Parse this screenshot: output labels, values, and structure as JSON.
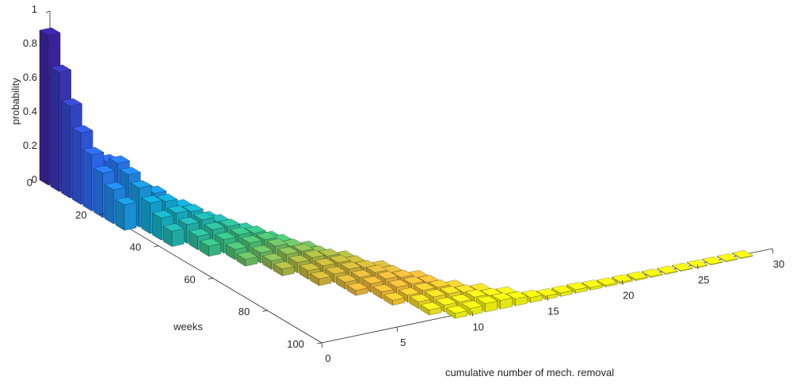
{
  "chart_data": {
    "type": "bar3d",
    "xlabel": "cumulative number of mech. removal",
    "ylabel": "weeks",
    "zlabel": "probability",
    "x_ticks": [
      0,
      5,
      10,
      15,
      20,
      25,
      30
    ],
    "y_ticks": [
      0,
      20,
      40,
      60,
      80,
      100
    ],
    "z_ticks": [
      0,
      0.2,
      0.4,
      0.6,
      0.8,
      1
    ],
    "xlim": [
      0,
      30
    ],
    "ylim": [
      0,
      100
    ],
    "zlim": [
      0,
      1
    ],
    "grid": false,
    "colormap": "parula",
    "colormap_stops": [
      "#3e26a8",
      "#2e6efb",
      "#12b0d6",
      "#3fc57e",
      "#c3b93c",
      "#f7ba3c",
      "#f9fb15"
    ],
    "series": [
      {
        "x": 0,
        "weeks": [
          0,
          4,
          8,
          12,
          16,
          20,
          24,
          28
        ],
        "values": [
          0.88,
          0.7,
          0.54,
          0.42,
          0.33,
          0.26,
          0.2,
          0.15
        ]
      },
      {
        "x": 1,
        "weeks": [
          8,
          12,
          16,
          20,
          24,
          28,
          32,
          36,
          40
        ],
        "values": [
          0.05,
          0.2,
          0.27,
          0.3,
          0.27,
          0.23,
          0.18,
          0.13,
          0.09
        ]
      },
      {
        "x": 2,
        "weeks": [
          16,
          20,
          24,
          28,
          32,
          36,
          40,
          44,
          48
        ],
        "values": [
          0.04,
          0.1,
          0.16,
          0.18,
          0.17,
          0.14,
          0.11,
          0.08,
          0.06
        ]
      },
      {
        "x": 3,
        "weeks": [
          24,
          28,
          32,
          36,
          40,
          44,
          48,
          52,
          56
        ],
        "values": [
          0.04,
          0.08,
          0.12,
          0.13,
          0.12,
          0.1,
          0.08,
          0.06,
          0.04
        ]
      },
      {
        "x": 4,
        "weeks": [
          32,
          36,
          40,
          44,
          48,
          52,
          56,
          60,
          64
        ],
        "values": [
          0.04,
          0.07,
          0.09,
          0.1,
          0.09,
          0.08,
          0.06,
          0.05,
          0.04
        ]
      },
      {
        "x": 5,
        "weeks": [
          40,
          44,
          48,
          52,
          56,
          60,
          64,
          68,
          72
        ],
        "values": [
          0.03,
          0.06,
          0.08,
          0.08,
          0.08,
          0.07,
          0.06,
          0.05,
          0.04
        ]
      },
      {
        "x": 6,
        "weeks": [
          48,
          52,
          56,
          60,
          64,
          68,
          72,
          76,
          80
        ],
        "values": [
          0.03,
          0.05,
          0.06,
          0.07,
          0.07,
          0.06,
          0.05,
          0.04,
          0.03
        ]
      },
      {
        "x": 7,
        "weeks": [
          56,
          60,
          64,
          68,
          72,
          76,
          80,
          84,
          88
        ],
        "values": [
          0.03,
          0.04,
          0.06,
          0.06,
          0.06,
          0.05,
          0.05,
          0.04,
          0.03
        ]
      },
      {
        "x": 8,
        "weeks": [
          64,
          68,
          72,
          76,
          80,
          84,
          88,
          92,
          96
        ],
        "values": [
          0.03,
          0.04,
          0.05,
          0.06,
          0.06,
          0.05,
          0.04,
          0.04,
          0.03
        ]
      },
      {
        "x": 9,
        "weeks": [
          72,
          76,
          80,
          84,
          88,
          92,
          96,
          100
        ],
        "values": [
          0.03,
          0.04,
          0.05,
          0.05,
          0.05,
          0.05,
          0.04,
          0.03
        ]
      },
      {
        "x": 10,
        "weeks": [
          80,
          84,
          88,
          92,
          96,
          100
        ],
        "values": [
          0.03,
          0.04,
          0.05,
          0.05,
          0.04,
          0.04
        ]
      },
      {
        "x": 11,
        "weeks": [
          88,
          92,
          96,
          100
        ],
        "values": [
          0.03,
          0.04,
          0.05,
          0.05
        ]
      },
      {
        "x": 12,
        "weeks": [
          92,
          96,
          100
        ],
        "values": [
          0.03,
          0.04,
          0.05
        ]
      },
      {
        "x": 13,
        "weeks": [
          96,
          100
        ],
        "values": [
          0.03,
          0.04
        ]
      },
      {
        "x": 14,
        "weeks": [
          100
        ],
        "values": [
          0.03
        ]
      },
      {
        "x": 15,
        "weeks": [
          100
        ],
        "values": [
          0.02
        ]
      },
      {
        "x": 16,
        "weeks": [
          100
        ],
        "values": [
          0.02
        ]
      },
      {
        "x": 17,
        "weeks": [
          100
        ],
        "values": [
          0.02
        ]
      },
      {
        "x": 18,
        "weeks": [
          100
        ],
        "values": [
          0.015
        ]
      },
      {
        "x": 19,
        "weeks": [
          100
        ],
        "values": [
          0.01
        ]
      },
      {
        "x": 20,
        "weeks": [
          100
        ],
        "values": [
          0.01
        ]
      },
      {
        "x": 21,
        "weeks": [
          100
        ],
        "values": [
          0.008
        ]
      },
      {
        "x": 22,
        "weeks": [
          100
        ],
        "values": [
          0.006
        ]
      },
      {
        "x": 23,
        "weeks": [
          100
        ],
        "values": [
          0.005
        ]
      },
      {
        "x": 24,
        "weeks": [
          100
        ],
        "values": [
          0.004
        ]
      },
      {
        "x": 25,
        "weeks": [
          100
        ],
        "values": [
          0.003
        ]
      },
      {
        "x": 26,
        "weeks": [
          100
        ],
        "values": [
          0.002
        ]
      },
      {
        "x": 27,
        "weeks": [
          100
        ],
        "values": [
          0.002
        ]
      },
      {
        "x": 28,
        "weeks": [
          100
        ],
        "values": [
          0.001
        ]
      }
    ]
  }
}
